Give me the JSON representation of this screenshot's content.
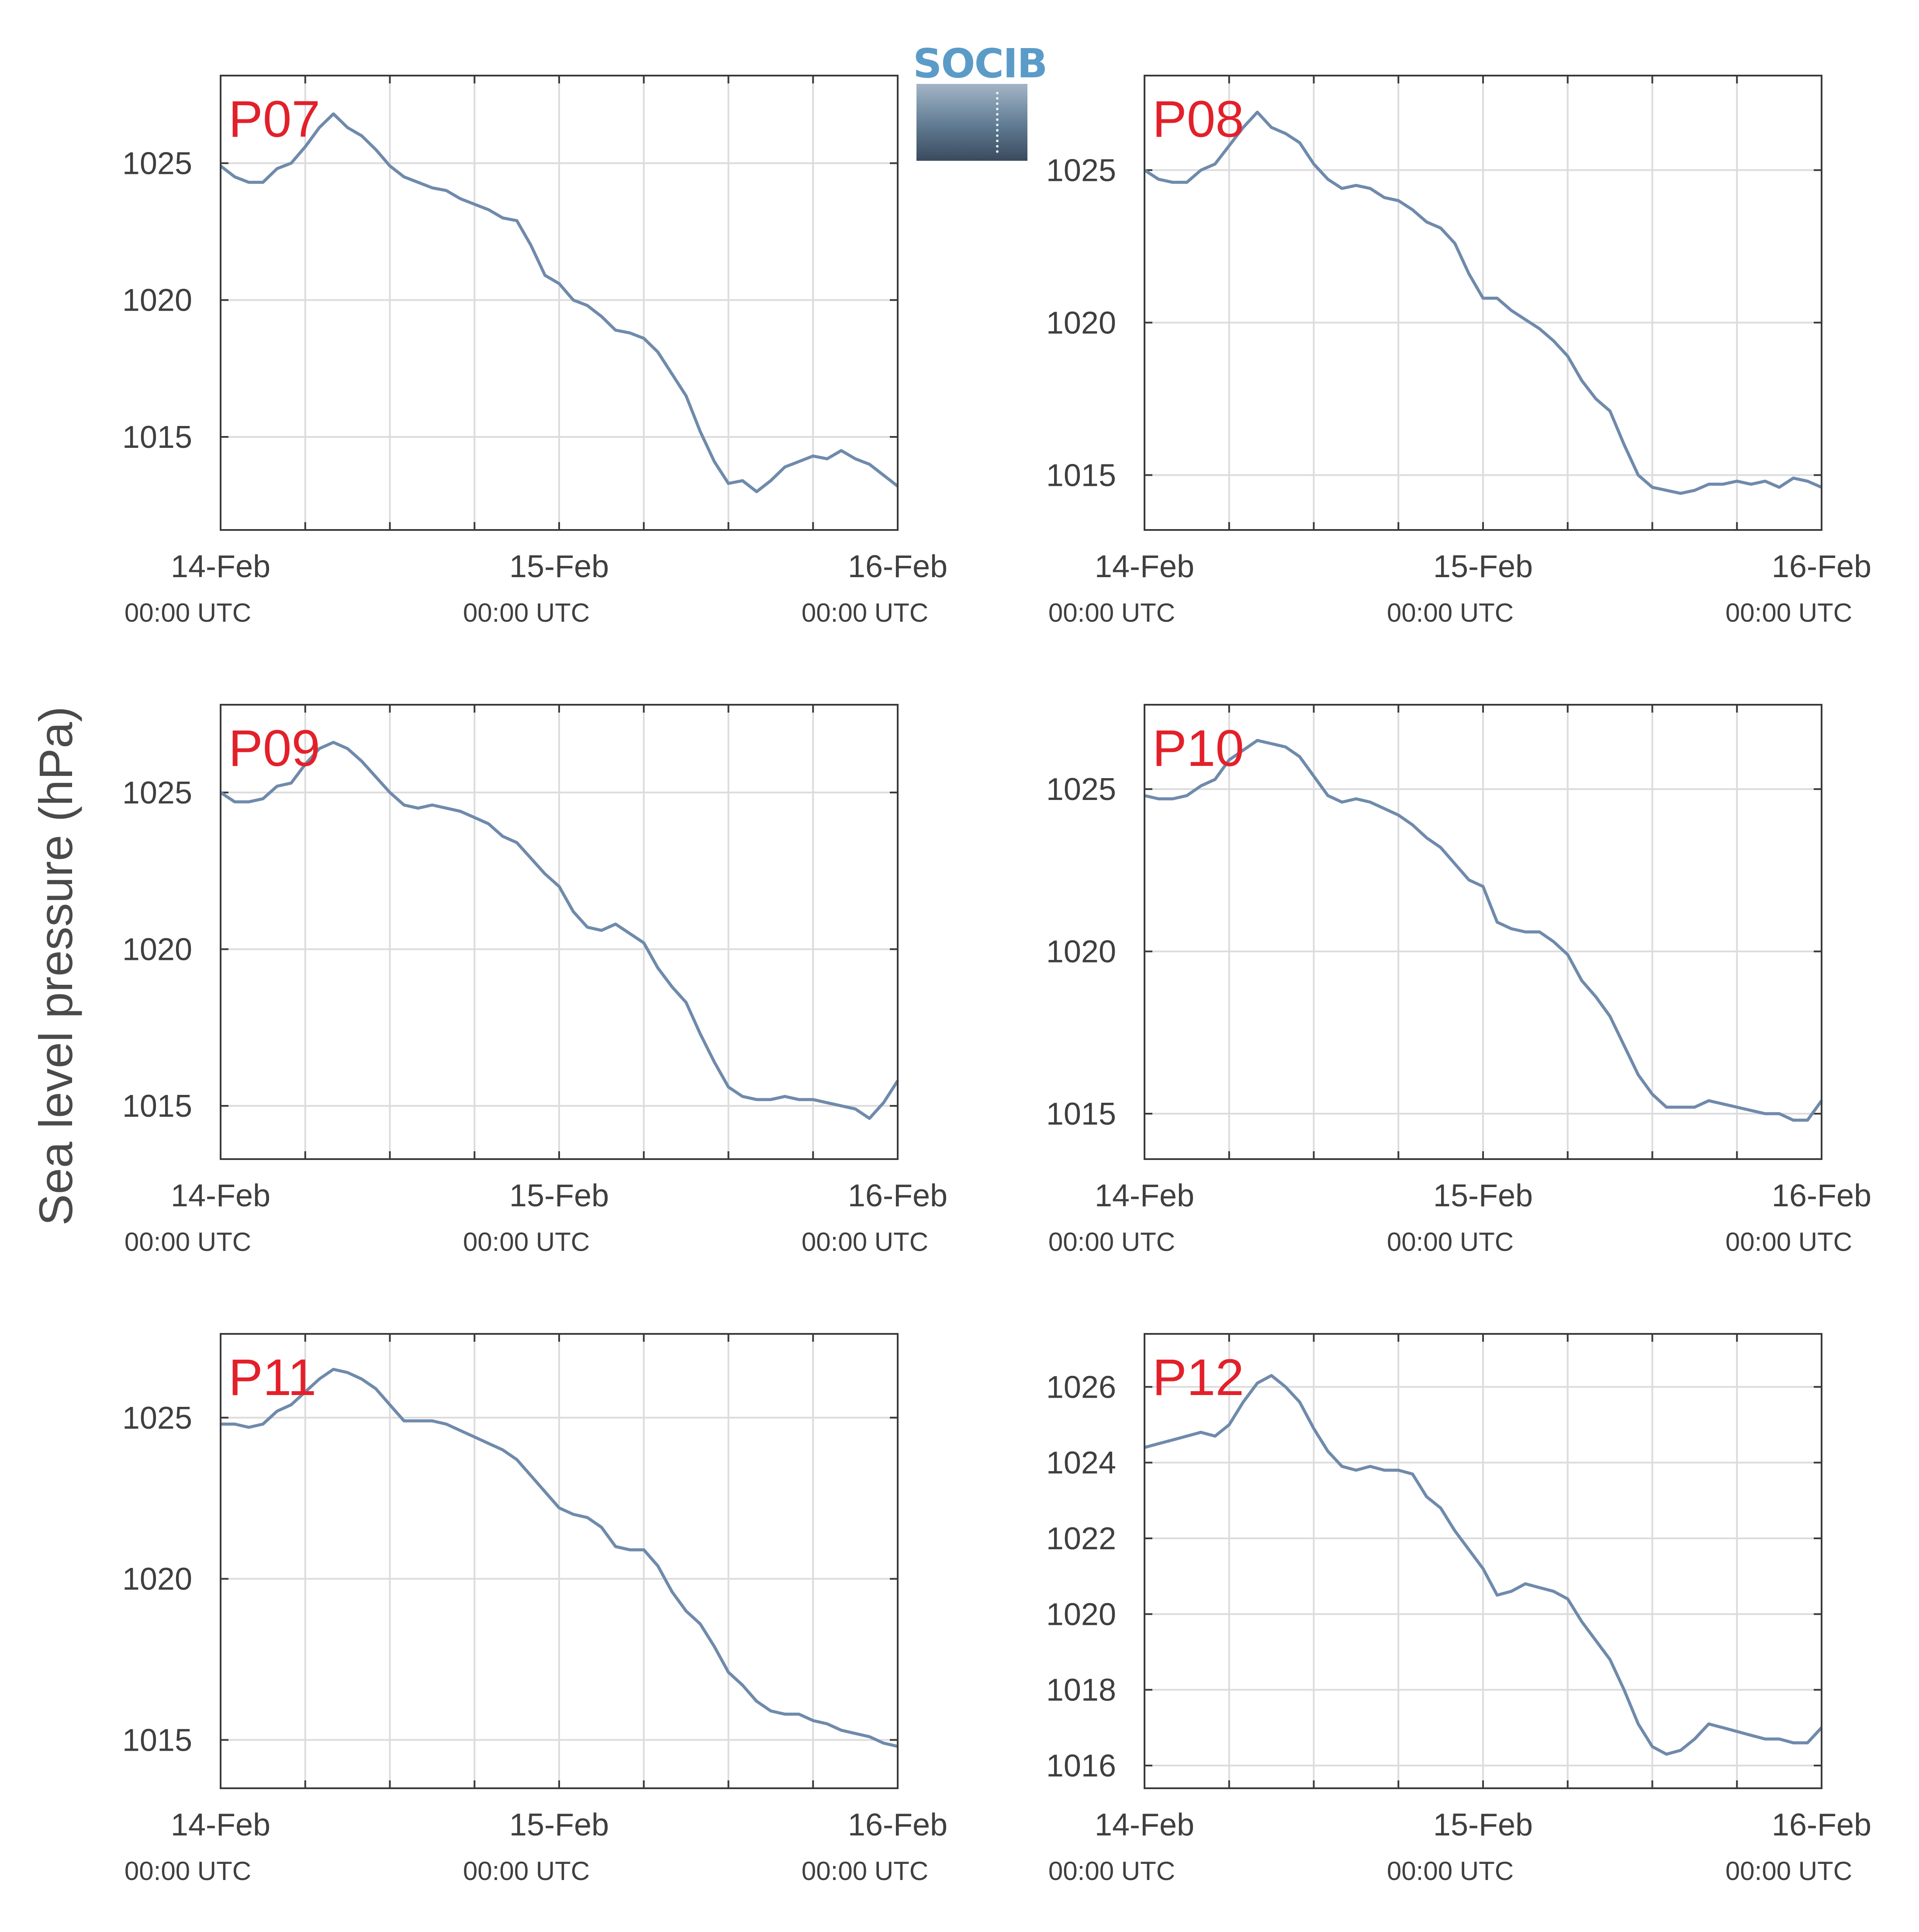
{
  "figure": {
    "ylabel": "Sea level pressure (hPa)",
    "logo_text": "SOCIB"
  },
  "colors": {
    "line": "#6f8aab",
    "station_label": "#e3202a",
    "grid": "#dcdcdc",
    "axis": "#3a3a3a",
    "tick_text": "#3f3f3f"
  },
  "chart_data": [
    {
      "type": "line",
      "panel": "P07",
      "xticks": [
        {
          "date": "14-Feb",
          "time": "00:00 UTC"
        },
        {
          "date": "15-Feb",
          "time": "00:00 UTC"
        },
        {
          "date": "16-Feb",
          "time": "00:00 UTC"
        }
      ],
      "xlim": [
        0,
        48
      ],
      "ylim": [
        1011.6,
        1028.2
      ],
      "yticks": [
        1015,
        1020,
        1025
      ],
      "series": [
        {
          "x": [
            0,
            1,
            2,
            3,
            4,
            5,
            6,
            7,
            8,
            9,
            10,
            11,
            12,
            13,
            14,
            15,
            16,
            17,
            18,
            19,
            20,
            21,
            22,
            23,
            24,
            25,
            26,
            27,
            28,
            29,
            30,
            31,
            32,
            33,
            34,
            35,
            36,
            37,
            38,
            39,
            40,
            41,
            42,
            43,
            44,
            45,
            46,
            47,
            48
          ],
          "y": [
            1024.9,
            1024.5,
            1024.3,
            1024.3,
            1024.8,
            1025.0,
            1025.6,
            1026.3,
            1026.8,
            1026.3,
            1026.0,
            1025.5,
            1024.9,
            1024.5,
            1024.3,
            1024.1,
            1024.0,
            1023.7,
            1023.5,
            1023.3,
            1023.0,
            1022.9,
            1022.0,
            1020.9,
            1020.6,
            1020.0,
            1019.8,
            1019.4,
            1018.9,
            1018.8,
            1018.6,
            1018.1,
            1017.3,
            1016.5,
            1015.2,
            1014.1,
            1013.3,
            1013.4,
            1013.0,
            1013.4,
            1013.9,
            1014.1,
            1014.3,
            1014.2,
            1014.5,
            1014.2,
            1014.0,
            1013.6,
            1013.2
          ]
        }
      ]
    },
    {
      "type": "line",
      "panel": "P08",
      "xticks": [
        {
          "date": "14-Feb",
          "time": "00:00 UTC"
        },
        {
          "date": "15-Feb",
          "time": "00:00 UTC"
        },
        {
          "date": "16-Feb",
          "time": "00:00 UTC"
        }
      ],
      "xlim": [
        0,
        48
      ],
      "ylim": [
        1013.2,
        1028.1
      ],
      "yticks": [
        1015,
        1020,
        1025
      ],
      "series": [
        {
          "x": [
            0,
            1,
            2,
            3,
            4,
            5,
            6,
            7,
            8,
            9,
            10,
            11,
            12,
            13,
            14,
            15,
            16,
            17,
            18,
            19,
            20,
            21,
            22,
            23,
            24,
            25,
            26,
            27,
            28,
            29,
            30,
            31,
            32,
            33,
            34,
            35,
            36,
            37,
            38,
            39,
            40,
            41,
            42,
            43,
            44,
            45,
            46,
            47,
            48
          ],
          "y": [
            1025.0,
            1024.7,
            1024.6,
            1024.6,
            1025.0,
            1025.2,
            1025.8,
            1026.4,
            1026.9,
            1026.4,
            1026.2,
            1025.9,
            1025.2,
            1024.7,
            1024.4,
            1024.5,
            1024.4,
            1024.1,
            1024.0,
            1023.7,
            1023.3,
            1023.1,
            1022.6,
            1021.6,
            1020.8,
            1020.8,
            1020.4,
            1020.1,
            1019.8,
            1019.4,
            1018.9,
            1018.1,
            1017.5,
            1017.1,
            1016.0,
            1015.0,
            1014.6,
            1014.5,
            1014.4,
            1014.5,
            1014.7,
            1014.7,
            1014.8,
            1014.7,
            1014.8,
            1014.6,
            1014.9,
            1014.8,
            1014.6
          ]
        }
      ]
    },
    {
      "type": "line",
      "panel": "P09",
      "xticks": [
        {
          "date": "14-Feb",
          "time": "00:00 UTC"
        },
        {
          "date": "15-Feb",
          "time": "00:00 UTC"
        },
        {
          "date": "16-Feb",
          "time": "00:00 UTC"
        }
      ],
      "xlim": [
        0,
        48
      ],
      "ylim": [
        1013.3,
        1027.8
      ],
      "yticks": [
        1015,
        1020,
        1025
      ],
      "series": [
        {
          "x": [
            0,
            1,
            2,
            3,
            4,
            5,
            6,
            7,
            8,
            9,
            10,
            11,
            12,
            13,
            14,
            15,
            16,
            17,
            18,
            19,
            20,
            21,
            22,
            23,
            24,
            25,
            26,
            27,
            28,
            29,
            30,
            31,
            32,
            33,
            34,
            35,
            36,
            37,
            38,
            39,
            40,
            41,
            42,
            43,
            44,
            45,
            46,
            47,
            48
          ],
          "y": [
            1025.0,
            1024.7,
            1024.7,
            1024.8,
            1025.2,
            1025.3,
            1025.9,
            1026.4,
            1026.6,
            1026.4,
            1026.0,
            1025.5,
            1025.0,
            1024.6,
            1024.5,
            1024.6,
            1024.5,
            1024.4,
            1024.2,
            1024.0,
            1023.6,
            1023.4,
            1022.9,
            1022.4,
            1022.0,
            1021.2,
            1020.7,
            1020.6,
            1020.8,
            1020.5,
            1020.2,
            1019.4,
            1018.8,
            1018.3,
            1017.3,
            1016.4,
            1015.6,
            1015.3,
            1015.2,
            1015.2,
            1015.3,
            1015.2,
            1015.2,
            1015.1,
            1015.0,
            1014.9,
            1014.6,
            1015.1,
            1015.8
          ]
        }
      ]
    },
    {
      "type": "line",
      "panel": "P10",
      "xticks": [
        {
          "date": "14-Feb",
          "time": "00:00 UTC"
        },
        {
          "date": "15-Feb",
          "time": "00:00 UTC"
        },
        {
          "date": "16-Feb",
          "time": "00:00 UTC"
        }
      ],
      "xlim": [
        0,
        48
      ],
      "ylim": [
        1013.6,
        1027.6
      ],
      "yticks": [
        1015,
        1020,
        1025
      ],
      "series": [
        {
          "x": [
            0,
            1,
            2,
            3,
            4,
            5,
            6,
            7,
            8,
            9,
            10,
            11,
            12,
            13,
            14,
            15,
            16,
            17,
            18,
            19,
            20,
            21,
            22,
            23,
            24,
            25,
            26,
            27,
            28,
            29,
            30,
            31,
            32,
            33,
            34,
            35,
            36,
            37,
            38,
            39,
            40,
            41,
            42,
            43,
            44,
            45,
            46,
            47,
            48
          ],
          "y": [
            1024.8,
            1024.7,
            1024.7,
            1024.8,
            1025.1,
            1025.3,
            1025.9,
            1026.2,
            1026.5,
            1026.4,
            1026.3,
            1026.0,
            1025.4,
            1024.8,
            1024.6,
            1024.7,
            1024.6,
            1024.4,
            1024.2,
            1023.9,
            1023.5,
            1023.2,
            1022.7,
            1022.2,
            1022.0,
            1020.9,
            1020.7,
            1020.6,
            1020.6,
            1020.3,
            1019.9,
            1019.1,
            1018.6,
            1018.0,
            1017.1,
            1016.2,
            1015.6,
            1015.2,
            1015.2,
            1015.2,
            1015.4,
            1015.3,
            1015.2,
            1015.1,
            1015.0,
            1015.0,
            1014.8,
            1014.8,
            1015.4
          ]
        }
      ]
    },
    {
      "type": "line",
      "panel": "P11",
      "xticks": [
        {
          "date": "14-Feb",
          "time": "00:00 UTC"
        },
        {
          "date": "15-Feb",
          "time": "00:00 UTC"
        },
        {
          "date": "16-Feb",
          "time": "00:00 UTC"
        }
      ],
      "xlim": [
        0,
        48
      ],
      "ylim": [
        1013.5,
        1027.6
      ],
      "yticks": [
        1015,
        1020,
        1025
      ],
      "series": [
        {
          "x": [
            0,
            1,
            2,
            3,
            4,
            5,
            6,
            7,
            8,
            9,
            10,
            11,
            12,
            13,
            14,
            15,
            16,
            17,
            18,
            19,
            20,
            21,
            22,
            23,
            24,
            25,
            26,
            27,
            28,
            29,
            30,
            31,
            32,
            33,
            34,
            35,
            36,
            37,
            38,
            39,
            40,
            41,
            42,
            43,
            44,
            45,
            46,
            47,
            48
          ],
          "y": [
            1024.8,
            1024.8,
            1024.7,
            1024.8,
            1025.2,
            1025.4,
            1025.8,
            1026.2,
            1026.5,
            1026.4,
            1026.2,
            1025.9,
            1025.4,
            1024.9,
            1024.9,
            1024.9,
            1024.8,
            1024.6,
            1024.4,
            1024.2,
            1024.0,
            1023.7,
            1023.2,
            1022.7,
            1022.2,
            1022.0,
            1021.9,
            1021.6,
            1021.0,
            1020.9,
            1020.9,
            1020.4,
            1019.6,
            1019.0,
            1018.6,
            1017.9,
            1017.1,
            1016.7,
            1016.2,
            1015.9,
            1015.8,
            1015.8,
            1015.6,
            1015.5,
            1015.3,
            1015.2,
            1015.1,
            1014.9,
            1014.8
          ]
        }
      ]
    },
    {
      "type": "line",
      "panel": "P12",
      "xticks": [
        {
          "date": "14-Feb",
          "time": "00:00 UTC"
        },
        {
          "date": "15-Feb",
          "time": "00:00 UTC"
        },
        {
          "date": "16-Feb",
          "time": "00:00 UTC"
        }
      ],
      "xlim": [
        0,
        48
      ],
      "ylim": [
        1015.4,
        1027.4
      ],
      "yticks": [
        1016,
        1018,
        1020,
        1022,
        1024,
        1026
      ],
      "series": [
        {
          "x": [
            0,
            1,
            2,
            3,
            4,
            5,
            6,
            7,
            8,
            9,
            10,
            11,
            12,
            13,
            14,
            15,
            16,
            17,
            18,
            19,
            20,
            21,
            22,
            23,
            24,
            25,
            26,
            27,
            28,
            29,
            30,
            31,
            32,
            33,
            34,
            35,
            36,
            37,
            38,
            39,
            40,
            41,
            42,
            43,
            44,
            45,
            46,
            47,
            48
          ],
          "y": [
            1024.4,
            1024.5,
            1024.6,
            1024.7,
            1024.8,
            1024.7,
            1025.0,
            1025.6,
            1026.1,
            1026.3,
            1026.0,
            1025.6,
            1024.9,
            1024.3,
            1023.9,
            1023.8,
            1023.9,
            1023.8,
            1023.8,
            1023.7,
            1023.1,
            1022.8,
            1022.2,
            1021.7,
            1021.2,
            1020.5,
            1020.6,
            1020.8,
            1020.7,
            1020.6,
            1020.4,
            1019.8,
            1019.3,
            1018.8,
            1018.0,
            1017.1,
            1016.5,
            1016.3,
            1016.4,
            1016.7,
            1017.1,
            1017.0,
            1016.9,
            1016.8,
            1016.7,
            1016.7,
            1016.6,
            1016.6,
            1017.0
          ]
        }
      ]
    }
  ]
}
